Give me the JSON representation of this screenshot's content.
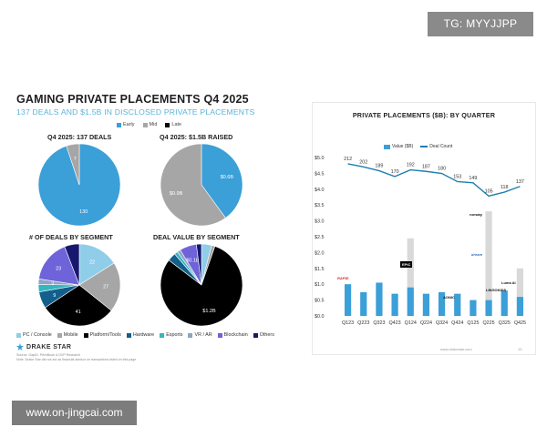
{
  "badge": {
    "text": "TG: MYYJJPP"
  },
  "watermark": {
    "text": "www.on-jingcai.com"
  },
  "left_slide": {
    "title": "GAMING PRIVATE PLACEMENTS Q4 2025",
    "subtitle": "137 DEALS AND $1.5B IN DISCLOSED PRIVATE PLACEMENTS",
    "stage_legend": [
      "Early",
      "Mid",
      "Late"
    ],
    "segment_legend": [
      "PC / Console",
      "Mobile",
      "Platform/Tools",
      "Hardware",
      "Esports",
      "VR / AR",
      "Blockchain",
      "Others"
    ],
    "logo_text": "DRAKE STAR",
    "footnote_1": "Source: GapID, PitchBook & DVP Research",
    "footnote_2": "Note: Drake Star did not act as financial advisor on transactions listed on this page"
  },
  "right_slide": {
    "url": "www.drakestar.com",
    "page_number": "13"
  },
  "colors": {
    "early": "#3b9fd8",
    "mid": "#a6a6a6",
    "late": "#000000",
    "pc": "#8fcde8",
    "mobile": "#a6a6a6",
    "platform": "#000000",
    "hardware": "#135f8c",
    "esports": "#34b6c0",
    "vrar": "#8ba4c8",
    "blockchain": "#6e63d8",
    "others": "#16186e",
    "bar": "#3b9fd8",
    "bar_light": "#d9d9d9",
    "line": "#1e7fae"
  },
  "chart_data": [
    {
      "type": "pie",
      "title": "Q4 2025: 137 DEALS",
      "labels": [
        "Early",
        "Mid",
        "Late"
      ],
      "values": [
        130,
        7,
        0
      ],
      "value_labels": [
        "130",
        "7",
        ""
      ]
    },
    {
      "type": "pie",
      "title": "Q4 2025: $1.5B RAISED",
      "labels": [
        "Early",
        "Mid",
        "Late"
      ],
      "values": [
        0.6,
        0.9,
        0
      ],
      "value_labels": [
        "$0.6B",
        "$0.9B",
        ""
      ]
    },
    {
      "type": "pie",
      "title": "# OF DEALS BY SEGMENT",
      "labels": [
        "PC / Console",
        "Mobile",
        "Platform/Tools",
        "Hardware",
        "Esports",
        "VR / AR",
        "Blockchain",
        "Others"
      ],
      "values": [
        22,
        27,
        41,
        9,
        4,
        3,
        23,
        8
      ],
      "value_labels": [
        "22",
        "27",
        "41",
        "9",
        "",
        "3",
        "23",
        ""
      ]
    },
    {
      "type": "pie",
      "title": "DEAL VALUE BY SEGMENT",
      "labels": [
        "PC / Console",
        "Mobile",
        "Platform/Tools",
        "Hardware",
        "Esports",
        "VR / AR",
        "Blockchain",
        "Others"
      ],
      "values": [
        0.06,
        0.02,
        1.2,
        0.05,
        0.02,
        0.02,
        0.1,
        0.03
      ],
      "value_labels": [
        "",
        "",
        "$1.2B",
        "",
        "",
        "",
        "$0.1B",
        ""
      ]
    },
    {
      "type": "bar",
      "title": "PRIVATE PLACEMENTS ($B): BY QUARTER",
      "categories": [
        "Q123",
        "Q223",
        "Q323",
        "Q423",
        "Q124",
        "Q224",
        "Q324",
        "Q424",
        "Q125",
        "Q225",
        "Q325",
        "Q425"
      ],
      "series": [
        {
          "name": "Value ($B)",
          "kind": "bar",
          "values": [
            1.0,
            0.75,
            1.05,
            0.7,
            2.45,
            0.7,
            0.75,
            0.7,
            0.5,
            3.3,
            0.8,
            1.5
          ],
          "highlight": [
            1.0,
            0.75,
            1.05,
            0.7,
            0.9,
            0.7,
            0.75,
            0.7,
            0.5,
            0.5,
            0.8,
            0.6
          ]
        },
        {
          "name": "Deal Count",
          "kind": "line",
          "values": [
            212,
            202,
            189,
            170,
            192,
            187,
            180,
            153,
            149,
            105,
            118,
            137
          ]
        }
      ],
      "y_ticks": [
        "$0.0",
        "$0.5",
        "$1.0",
        "$1.5",
        "$2.0",
        "$2.5",
        "$3.0",
        "$3.5",
        "$4.0",
        "$4.5",
        "$5.0"
      ],
      "ylim": [
        0,
        5
      ],
      "company_logos": [
        "RAPID",
        "EPIC",
        "AONIC",
        "runway",
        "dream",
        "Luma AI",
        "LINGOKIDS"
      ]
    }
  ]
}
